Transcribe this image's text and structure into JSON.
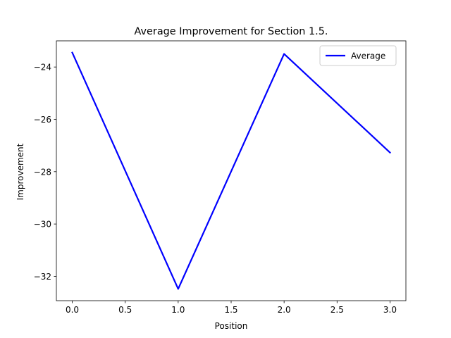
{
  "chart_data": {
    "type": "line",
    "title": "Average Improvement for Section 1.5.",
    "xlabel": "Position",
    "ylabel": "Improvement",
    "x": [
      0.0,
      1.0,
      2.0,
      3.0
    ],
    "series": [
      {
        "name": "Average",
        "color": "#0000ff",
        "values": [
          -23.45,
          -32.48,
          -23.5,
          -27.27
        ]
      }
    ],
    "xlim": [
      -0.15,
      3.15
    ],
    "ylim": [
      -32.93,
      -23.0
    ],
    "xticks": [
      0.0,
      0.5,
      1.0,
      1.5,
      2.0,
      2.5,
      3.0
    ],
    "xtick_labels": [
      "0.0",
      "0.5",
      "1.0",
      "1.5",
      "2.0",
      "2.5",
      "3.0"
    ],
    "yticks": [
      -24,
      -26,
      -28,
      -30,
      -32
    ],
    "ytick_labels": [
      "−24",
      "−26",
      "−28",
      "−30",
      "−32"
    ],
    "grid": false,
    "legend_position": "upper right"
  }
}
